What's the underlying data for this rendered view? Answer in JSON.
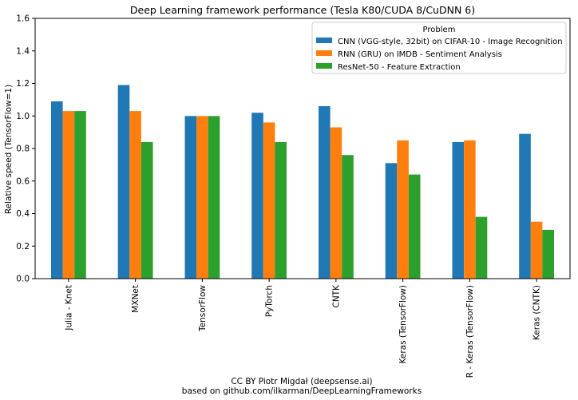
{
  "chart_data": {
    "type": "bar",
    "title": "Deep Learning framework performance (Tesla K80/CUDA 8/CuDNN 6)",
    "xlabel": "",
    "ylabel": "Relative speed (TensorFlow=1)",
    "ylim": [
      0,
      1.6
    ],
    "yticks": [
      "0.0",
      "0.2",
      "0.4",
      "0.6",
      "0.8",
      "1.0",
      "1.2",
      "1.4",
      "1.6"
    ],
    "grid": false,
    "legend": {
      "title": "Problem",
      "placement": "top-right"
    },
    "categories": [
      "Julia - Knet",
      "MXNet",
      "TensorFlow",
      "PyTorch",
      "CNTK",
      "Keras (TensorFlow)",
      "R - Keras (TensorFlow)",
      "Keras (CNTK)"
    ],
    "series": [
      {
        "name": "CNN (VGG-style, 32bit) on CIFAR-10 - Image Recognition",
        "color": "#1f77b4",
        "values": [
          1.09,
          1.19,
          1.0,
          1.02,
          1.06,
          0.71,
          0.84,
          0.89
        ]
      },
      {
        "name": "RNN (GRU) on IMDB - Sentiment Analysis",
        "color": "#ff7f0e",
        "values": [
          1.03,
          1.03,
          1.0,
          0.96,
          0.93,
          0.85,
          0.85,
          0.35
        ]
      },
      {
        "name": "ResNet-50 - Feature Extraction",
        "color": "#2ca02c",
        "values": [
          1.03,
          0.84,
          1.0,
          0.84,
          0.76,
          0.64,
          0.38,
          0.3
        ]
      }
    ]
  },
  "credits": {
    "line1": "CC BY Piotr Migdał (deepsense.ai)",
    "line2": "based on github.com/ilkarman/DeepLearningFrameworks"
  }
}
